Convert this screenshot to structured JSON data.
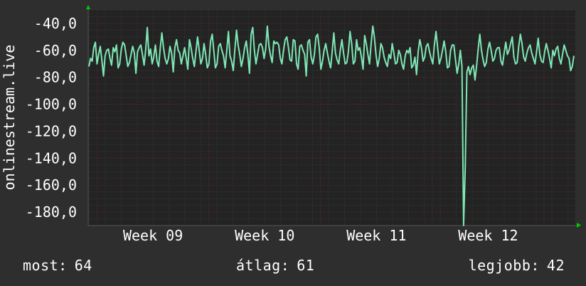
{
  "chart_data": {
    "type": "line",
    "ylabel": "onlinestream.live",
    "ylim": [
      -190,
      -30
    ],
    "yticks": [
      -40,
      -60,
      -80,
      -100,
      -120,
      -140,
      -160,
      -180
    ],
    "ytick_labels": [
      "-40,0",
      "-60,0",
      "-80,0",
      "-100,0",
      "-120,0",
      "-140,0",
      "-160,0",
      "-180,0"
    ],
    "x_range_weeks": [
      8.42,
      12.78
    ],
    "xticks": [
      {
        "label": "Week 09",
        "week": 9
      },
      {
        "label": "Week 10",
        "week": 10
      },
      {
        "label": "Week 11",
        "week": 11
      },
      {
        "label": "Week 12",
        "week": 12
      }
    ],
    "grid": true,
    "colors": {
      "background": "#2e2e2e",
      "plot_background": "#232323",
      "series": "#7ee8b5",
      "major_grid": "#6a2a2a",
      "minor_grid": "#3a3a3a",
      "axis_arrow": "#00cc00",
      "text": "#ffffff"
    },
    "series": [
      {
        "values": [
          -72,
          -66,
          -68,
          -58,
          -54,
          -70,
          -63,
          -57,
          -67,
          -79,
          -64,
          -60,
          -59,
          -66,
          -71,
          -58,
          -61,
          -56,
          -73,
          -70,
          -59,
          -54,
          -56,
          -64,
          -72,
          -69,
          -63,
          -57,
          -62,
          -77,
          -61,
          -58,
          -56,
          -63,
          -71,
          -60,
          -43,
          -64,
          -59,
          -70,
          -65,
          -56,
          -68,
          -72,
          -58,
          -47,
          -58,
          -66,
          -70,
          -66,
          -57,
          -62,
          -76,
          -58,
          -52,
          -60,
          -62,
          -70,
          -64,
          -58,
          -66,
          -74,
          -52,
          -58,
          -66,
          -72,
          -61,
          -50,
          -60,
          -70,
          -66,
          -55,
          -63,
          -73,
          -70,
          -53,
          -48,
          -60,
          -73,
          -70,
          -57,
          -55,
          -60,
          -64,
          -73,
          -60,
          -46,
          -64,
          -68,
          -75,
          -59,
          -45,
          -56,
          -63,
          -72,
          -66,
          -58,
          -53,
          -63,
          -77,
          -48,
          -43,
          -60,
          -70,
          -63,
          -56,
          -55,
          -58,
          -66,
          -59,
          -42,
          -57,
          -64,
          -69,
          -53,
          -55,
          -54,
          -56,
          -66,
          -70,
          -60,
          -52,
          -50,
          -58,
          -67,
          -68,
          -52,
          -53,
          -70,
          -74,
          -57,
          -56,
          -60,
          -63,
          -79,
          -54,
          -52,
          -65,
          -70,
          -63,
          -50,
          -48,
          -58,
          -74,
          -68,
          -60,
          -55,
          -62,
          -68,
          -73,
          -61,
          -47,
          -62,
          -67,
          -70,
          -60,
          -52,
          -62,
          -70,
          -69,
          -61,
          -46,
          -55,
          -70,
          -68,
          -52,
          -60,
          -58,
          -65,
          -74,
          -49,
          -55,
          -63,
          -70,
          -55,
          -42,
          -50,
          -63,
          -72,
          -66,
          -55,
          -58,
          -65,
          -69,
          -72,
          -63,
          -66,
          -55,
          -62,
          -70,
          -69,
          -60,
          -63,
          -70,
          -74,
          -64,
          -60,
          -62,
          -58,
          -73,
          -71,
          -65,
          -78,
          -61,
          -52,
          -58,
          -68,
          -65,
          -57,
          -55,
          -61,
          -66,
          -70,
          -56,
          -46,
          -58,
          -70,
          -66,
          -60,
          -53,
          -61,
          -73,
          -72,
          -60,
          -56,
          -56,
          -67,
          -77,
          -70,
          -60,
          -72,
          -190,
          -147,
          -76,
          -72,
          -78,
          -73,
          -71,
          -82,
          -72,
          -59,
          -48,
          -60,
          -67,
          -72,
          -69,
          -59,
          -54,
          -60,
          -68,
          -66,
          -60,
          -58,
          -58,
          -68,
          -71,
          -62,
          -54,
          -63,
          -60,
          -55,
          -50,
          -65,
          -70,
          -69,
          -57,
          -48,
          -55,
          -65,
          -68,
          -62,
          -58,
          -56,
          -62,
          -66,
          -70,
          -61,
          -51,
          -63,
          -68,
          -69,
          -61,
          -55,
          -60,
          -66,
          -73,
          -60,
          -64,
          -59,
          -57,
          -66,
          -70,
          -63,
          -56,
          -60,
          -64,
          -66,
          -75,
          -72,
          -64
        ]
      }
    ]
  },
  "footer": {
    "current": {
      "label": "most:",
      "value": "64"
    },
    "average": {
      "label": "átlag:",
      "value": "61"
    },
    "best": {
      "label": "legjobb:",
      "value": "42"
    }
  }
}
